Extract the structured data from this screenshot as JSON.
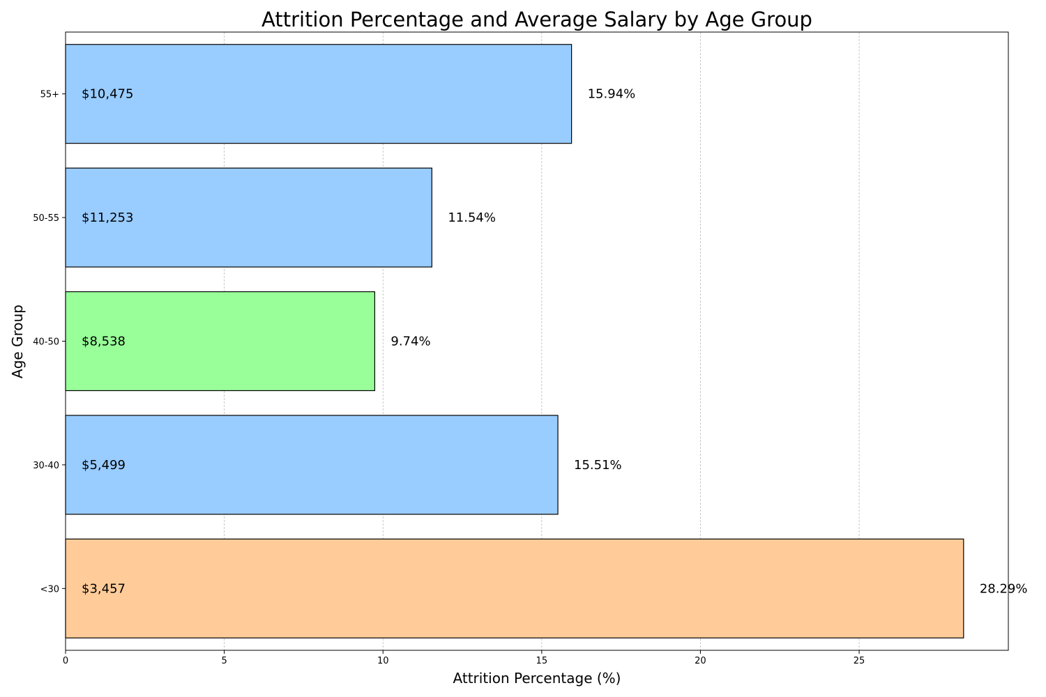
{
  "chart_data": {
    "type": "bar",
    "orientation": "horizontal",
    "title": "Attrition Percentage and Average Salary by Age Group",
    "xlabel": "Attrition Percentage (%)",
    "ylabel": "Age Group",
    "xlim": [
      0,
      29.7
    ],
    "xticks": [
      0,
      5,
      10,
      15,
      20,
      25
    ],
    "grid": "x-dashed",
    "categories": [
      "<30",
      "30-40",
      "40-50",
      "50-55",
      "55+"
    ],
    "values": [
      28.29,
      15.51,
      9.74,
      11.54,
      15.94
    ],
    "value_labels": [
      "28.29%",
      "15.51%",
      "9.74%",
      "11.54%",
      "15.94%"
    ],
    "salary_labels": [
      "$3,457",
      "$5,499",
      "$8,538",
      "$11,253",
      "$10,475"
    ],
    "colors": [
      "#ffcc99",
      "#99ccff",
      "#99ff99",
      "#99ccff",
      "#99ccff"
    ]
  }
}
